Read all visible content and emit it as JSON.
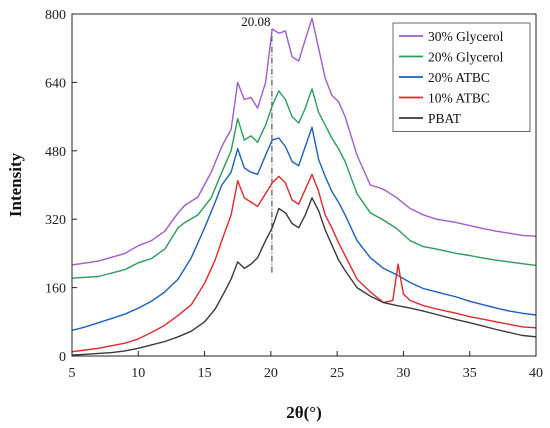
{
  "chart_data": {
    "type": "line",
    "xlabel": "2θ(°)",
    "ylabel": "Intensity",
    "xlim": [
      5,
      40
    ],
    "ylim": [
      0,
      800
    ],
    "xticks": [
      5,
      10,
      15,
      20,
      25,
      30,
      35,
      40
    ],
    "yticks": [
      0,
      160,
      320,
      480,
      640,
      800
    ],
    "grid": false,
    "legend_position": "top-right",
    "annotation": {
      "label": "20.08",
      "x": 20.08,
      "y_from": 195,
      "y_to": 765
    },
    "series": [
      {
        "name": "30% Glycerol",
        "color": "#a05bd0",
        "points": [
          [
            5,
            213
          ],
          [
            7,
            222
          ],
          [
            9,
            240
          ],
          [
            10,
            258
          ],
          [
            11,
            270
          ],
          [
            12,
            292
          ],
          [
            13,
            335
          ],
          [
            13.5,
            352
          ],
          [
            14.5,
            372
          ],
          [
            15.5,
            430
          ],
          [
            16.3,
            490
          ],
          [
            17,
            530
          ],
          [
            17.5,
            640
          ],
          [
            18,
            600
          ],
          [
            18.5,
            605
          ],
          [
            19,
            580
          ],
          [
            19.6,
            640
          ],
          [
            20.1,
            765
          ],
          [
            20.6,
            755
          ],
          [
            21.1,
            760
          ],
          [
            21.6,
            700
          ],
          [
            22.1,
            690
          ],
          [
            22.6,
            740
          ],
          [
            23.1,
            790
          ],
          [
            23.6,
            720
          ],
          [
            24.1,
            650
          ],
          [
            24.6,
            610
          ],
          [
            25.1,
            595
          ],
          [
            25.6,
            560
          ],
          [
            26.5,
            470
          ],
          [
            27.5,
            400
          ],
          [
            28.5,
            390
          ],
          [
            29.5,
            370
          ],
          [
            30.5,
            345
          ],
          [
            31.5,
            330
          ],
          [
            32.5,
            320
          ],
          [
            34,
            312
          ],
          [
            35,
            305
          ],
          [
            36,
            298
          ],
          [
            37,
            292
          ],
          [
            38,
            287
          ],
          [
            39,
            282
          ],
          [
            40,
            280
          ]
        ]
      },
      {
        "name": "20% Glycerol",
        "color": "#2a9d5a",
        "points": [
          [
            5,
            182
          ],
          [
            7,
            186
          ],
          [
            9,
            202
          ],
          [
            10,
            218
          ],
          [
            11,
            228
          ],
          [
            12,
            250
          ],
          [
            13,
            300
          ],
          [
            13.5,
            312
          ],
          [
            14.5,
            330
          ],
          [
            15.5,
            370
          ],
          [
            16.3,
            430
          ],
          [
            17,
            480
          ],
          [
            17.5,
            555
          ],
          [
            18,
            505
          ],
          [
            18.5,
            515
          ],
          [
            19,
            500
          ],
          [
            19.6,
            540
          ],
          [
            20.1,
            585
          ],
          [
            20.6,
            620
          ],
          [
            21.1,
            600
          ],
          [
            21.6,
            560
          ],
          [
            22.1,
            545
          ],
          [
            22.6,
            580
          ],
          [
            23.1,
            625
          ],
          [
            23.6,
            570
          ],
          [
            24.1,
            540
          ],
          [
            24.6,
            510
          ],
          [
            25.1,
            485
          ],
          [
            25.6,
            455
          ],
          [
            26.5,
            380
          ],
          [
            27.5,
            335
          ],
          [
            28.5,
            318
          ],
          [
            29.5,
            298
          ],
          [
            30.5,
            270
          ],
          [
            31.5,
            256
          ],
          [
            32.5,
            250
          ],
          [
            34,
            240
          ],
          [
            35,
            235
          ],
          [
            36,
            229
          ],
          [
            37,
            224
          ],
          [
            38,
            220
          ],
          [
            39,
            216
          ],
          [
            40,
            212
          ]
        ]
      },
      {
        "name": "20% ATBC",
        "color": "#1a5fbf",
        "points": [
          [
            5,
            60
          ],
          [
            6,
            68
          ],
          [
            7,
            78
          ],
          [
            8,
            88
          ],
          [
            9,
            98
          ],
          [
            10,
            112
          ],
          [
            11,
            128
          ],
          [
            12,
            150
          ],
          [
            13,
            180
          ],
          [
            14,
            230
          ],
          [
            15,
            300
          ],
          [
            15.8,
            360
          ],
          [
            16.3,
            400
          ],
          [
            17,
            430
          ],
          [
            17.5,
            485
          ],
          [
            18,
            440
          ],
          [
            18.5,
            430
          ],
          [
            19,
            425
          ],
          [
            19.6,
            470
          ],
          [
            20.1,
            505
          ],
          [
            20.6,
            510
          ],
          [
            21.1,
            490
          ],
          [
            21.6,
            455
          ],
          [
            22.1,
            445
          ],
          [
            22.6,
            490
          ],
          [
            23.1,
            535
          ],
          [
            23.6,
            460
          ],
          [
            24.1,
            420
          ],
          [
            24.6,
            385
          ],
          [
            25.1,
            360
          ],
          [
            25.6,
            330
          ],
          [
            26.5,
            270
          ],
          [
            27.5,
            230
          ],
          [
            28.5,
            205
          ],
          [
            29.5,
            190
          ],
          [
            30.5,
            172
          ],
          [
            31.5,
            158
          ],
          [
            32.5,
            150
          ],
          [
            34,
            138
          ],
          [
            35,
            128
          ],
          [
            36,
            120
          ],
          [
            37,
            112
          ],
          [
            38,
            105
          ],
          [
            39,
            100
          ],
          [
            40,
            96
          ]
        ]
      },
      {
        "name": "10% ATBC",
        "color": "#e0282d",
        "points": [
          [
            5,
            10
          ],
          [
            6,
            14
          ],
          [
            7,
            18
          ],
          [
            8,
            24
          ],
          [
            9,
            30
          ],
          [
            10,
            40
          ],
          [
            11,
            55
          ],
          [
            12,
            72
          ],
          [
            13,
            95
          ],
          [
            14,
            120
          ],
          [
            15,
            170
          ],
          [
            15.8,
            225
          ],
          [
            16.3,
            270
          ],
          [
            17,
            330
          ],
          [
            17.5,
            410
          ],
          [
            18,
            370
          ],
          [
            18.5,
            360
          ],
          [
            19,
            350
          ],
          [
            19.6,
            380
          ],
          [
            20.1,
            405
          ],
          [
            20.6,
            420
          ],
          [
            21.1,
            405
          ],
          [
            21.6,
            365
          ],
          [
            22.1,
            355
          ],
          [
            22.6,
            390
          ],
          [
            23.1,
            425
          ],
          [
            23.6,
            385
          ],
          [
            24.1,
            330
          ],
          [
            24.6,
            300
          ],
          [
            25.1,
            265
          ],
          [
            25.6,
            235
          ],
          [
            26.5,
            180
          ],
          [
            27.5,
            150
          ],
          [
            28.5,
            125
          ],
          [
            29.2,
            130
          ],
          [
            29.6,
            215
          ],
          [
            30,
            145
          ],
          [
            30.5,
            130
          ],
          [
            31.5,
            118
          ],
          [
            32.5,
            110
          ],
          [
            34,
            100
          ],
          [
            35,
            92
          ],
          [
            36,
            86
          ],
          [
            37,
            80
          ],
          [
            38,
            74
          ],
          [
            39,
            68
          ],
          [
            40,
            66
          ]
        ]
      },
      {
        "name": "PBAT",
        "color": "#3a3a3a",
        "points": [
          [
            5,
            2
          ],
          [
            6,
            4
          ],
          [
            7,
            6
          ],
          [
            8,
            8
          ],
          [
            9,
            12
          ],
          [
            10,
            18
          ],
          [
            11,
            26
          ],
          [
            12,
            34
          ],
          [
            13,
            45
          ],
          [
            14,
            58
          ],
          [
            15,
            80
          ],
          [
            15.8,
            110
          ],
          [
            16.5,
            150
          ],
          [
            17,
            180
          ],
          [
            17.5,
            220
          ],
          [
            18,
            205
          ],
          [
            18.5,
            215
          ],
          [
            19,
            230
          ],
          [
            19.6,
            270
          ],
          [
            20.1,
            300
          ],
          [
            20.6,
            345
          ],
          [
            21.1,
            335
          ],
          [
            21.6,
            310
          ],
          [
            22.1,
            300
          ],
          [
            22.6,
            330
          ],
          [
            23.1,
            370
          ],
          [
            23.6,
            340
          ],
          [
            24.1,
            295
          ],
          [
            24.6,
            260
          ],
          [
            25.1,
            225
          ],
          [
            25.6,
            200
          ],
          [
            26.5,
            160
          ],
          [
            27.5,
            140
          ],
          [
            28.5,
            125
          ],
          [
            29.5,
            118
          ],
          [
            30.5,
            112
          ],
          [
            31.5,
            105
          ],
          [
            32.5,
            97
          ],
          [
            34,
            85
          ],
          [
            35,
            78
          ],
          [
            36,
            70
          ],
          [
            37,
            62
          ],
          [
            38,
            55
          ],
          [
            39,
            48
          ],
          [
            40,
            45
          ]
        ]
      }
    ]
  }
}
